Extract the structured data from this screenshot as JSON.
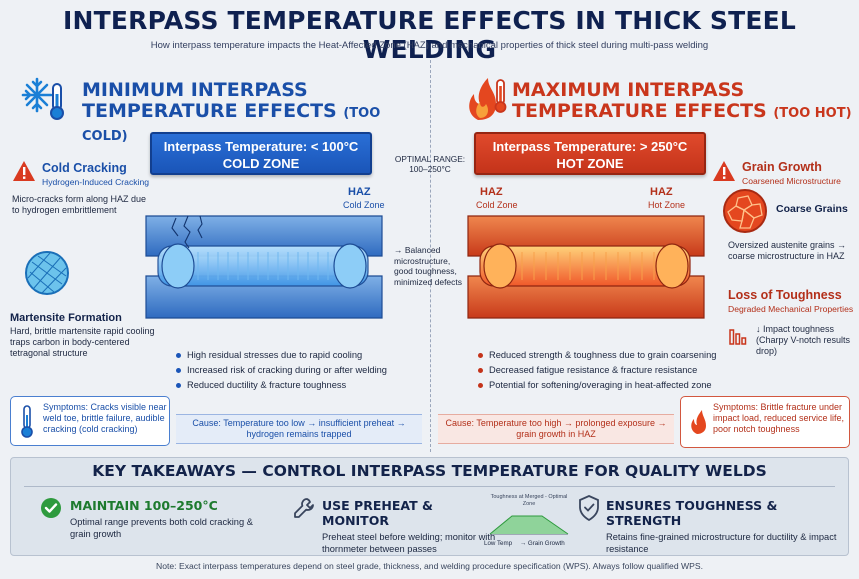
{
  "header": {
    "title": "INTERPASS TEMPERATURE EFFECTS IN THICK STEEL WELDING",
    "subtitle": "How interpass temperature impacts the Heat-Affected Zone (HAZ) and mechanical properties of thick steel during multi-pass welding"
  },
  "cold": {
    "heading_l1": "MINIMUM INTERPASS",
    "heading_l2": "TEMPERATURE EFFECTS",
    "heading_tag": "(TOO COLD)",
    "zone_line1": "Interpass Temperature: < 100°C",
    "zone_line2": "COLD ZONE",
    "cracking_title": "Cold Cracking",
    "cracking_sub": "Hydrogen-Induced Cracking",
    "cracking_desc": "Micro-cracks form along HAZ due to hydrogen embrittlement",
    "haz_label": "HAZ",
    "haz_sub": "Cold Zone",
    "martensite_title": "Martensite Formation",
    "martensite_desc": "Hard, brittle martensite rapid cooling traps carbon in body-centered tetragonal structure",
    "bullets": [
      "High residual stresses due to rapid cooling",
      "Increased risk of cracking during or after welding",
      "Reduced ductility & fracture toughness"
    ],
    "symptoms": "Symptoms: Cracks visible near weld toe, brittle failure, audible cracking (cold cracking)",
    "cause": "Cause: Temperature too low → insufficient preheat → hydrogen remains trapped"
  },
  "center": {
    "optimal_l1": "OPTIMAL RANGE:",
    "optimal_l2": "100–250°C",
    "balanced": "→ Balanced microstructure, good toughness, minimized defects"
  },
  "hot": {
    "heading_l1": "MAXIMUM INTERPASS",
    "heading_l2": "TEMPERATURE EFFECTS",
    "heading_tag": "(TOO HOT)",
    "zone_line1": "Interpass Temperature: > 250°C",
    "zone_line2": "HOT ZONE",
    "haz_left": "HAZ",
    "haz_left_sub": "Cold Zone",
    "haz_right": "HAZ",
    "haz_right_sub": "Hot Zone",
    "grain_title": "Grain Growth",
    "grain_sub": "Coarsened Microstructure",
    "coarse_label": "Coarse Grains",
    "grain_desc": "Oversized austenite grains → coarse microstructure in HAZ",
    "tough_title": "Loss of Toughness",
    "tough_sub": "Degraded Mechanical Properties",
    "tough_desc": "↓ Impact toughness (Charpy V-notch results drop)",
    "bullets": [
      "Reduced strength & toughness due to grain coarsening",
      "Decreased fatigue resistance & fracture resistance",
      "Potential for softening/overaging in heat-affected zone"
    ],
    "symptoms": "Symptoms: Brittle fracture under impact load, reduced service life, poor notch toughness",
    "cause": "Cause: Temperature too high → prolonged exposure → grain growth in HAZ"
  },
  "takeaways": {
    "title": "KEY TAKEAWAYS — CONTROL INTERPASS TEMPERATURE FOR QUALITY WELDS",
    "items": [
      {
        "heading": "MAINTAIN 100–250°C",
        "desc": "Optimal range prevents both cold cracking & grain growth"
      },
      {
        "heading": "USE PREHEAT & MONITOR",
        "desc": "Preheat steel before welding; monitor with thornmeter between passes"
      },
      {
        "heading": "ENSURES TOUGHNESS & STRENGTH",
        "desc": "Retains fine-grained microstructure for ductility & impact resistance"
      }
    ],
    "mini_top": "Toughness at Merged - Optimal Zone",
    "mini_low": "Low Temp",
    "mini_high": "→ Grain Growth"
  },
  "note": "Note: Exact interpass temperatures depend on steel grade, thickness, and welding procedure specification (WPS). Always follow qualified WPS.",
  "colors": {
    "cold_accent": "#1a4fa8",
    "hot_accent": "#c9361c",
    "ok_green": "#1d7a2e"
  }
}
